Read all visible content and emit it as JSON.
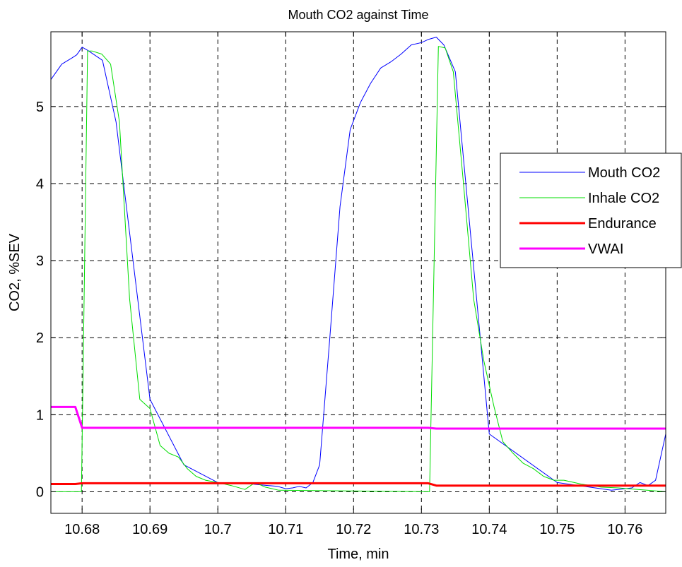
{
  "chart_data": {
    "type": "line",
    "title": "Mouth CO2 against Time",
    "xlabel": "Time, min",
    "ylabel": "CO2, %SEV",
    "xlim": [
      10.6754,
      10.766
    ],
    "ylim": [
      -0.28,
      5.97
    ],
    "x_ticks": [
      10.68,
      10.69,
      10.7,
      10.71,
      10.72,
      10.73,
      10.74,
      10.75,
      10.76
    ],
    "x_tick_labels": [
      "10.68",
      "10.69",
      "10.7",
      "10.71",
      "10.72",
      "10.73",
      "10.74",
      "10.75",
      "10.76"
    ],
    "y_ticks": [
      0,
      1,
      2,
      3,
      4,
      5
    ],
    "y_tick_labels": [
      "0",
      "1",
      "2",
      "3",
      "4",
      "5"
    ],
    "grid": true,
    "legend_position": "right",
    "series": [
      {
        "name": "Mouth CO2",
        "color": "#0000ff",
        "width": 1,
        "x": [
          10.6754,
          10.677,
          10.6785,
          10.6792,
          10.68,
          10.6808,
          10.683,
          10.685,
          10.69,
          10.695,
          10.7,
          10.705,
          10.7075,
          10.7088,
          10.71,
          10.711,
          10.712,
          10.713,
          10.714,
          10.715,
          10.7165,
          10.718,
          10.7195,
          10.721,
          10.7225,
          10.724,
          10.7255,
          10.727,
          10.7285,
          10.73,
          10.731,
          10.7322,
          10.7333,
          10.735,
          10.74,
          10.75,
          10.758,
          10.761,
          10.7622,
          10.7634,
          10.7645,
          10.766
        ],
        "y": [
          5.35,
          5.55,
          5.63,
          5.67,
          5.77,
          5.73,
          5.6,
          4.8,
          1.2,
          0.35,
          0.12,
          0.1,
          0.08,
          0.07,
          0.04,
          0.05,
          0.07,
          0.05,
          0.12,
          0.35,
          2.0,
          3.7,
          4.7,
          5.05,
          5.3,
          5.5,
          5.58,
          5.68,
          5.8,
          5.83,
          5.87,
          5.9,
          5.8,
          5.45,
          0.75,
          0.12,
          0.02,
          0.05,
          0.12,
          0.08,
          0.15,
          0.75
        ]
      },
      {
        "name": "Inhale CO2",
        "color": "#00dd00",
        "width": 1,
        "x": [
          10.6754,
          10.6799,
          10.6808,
          10.6815,
          10.6829,
          10.6842,
          10.6855,
          10.687,
          10.6885,
          10.69,
          10.6915,
          10.6928,
          10.6942,
          10.6955,
          10.6968,
          10.6982,
          10.7,
          10.702,
          10.704,
          10.7055,
          10.707,
          10.709,
          10.7312,
          10.7325,
          10.7335,
          10.7347,
          10.7362,
          10.7377,
          10.7392,
          10.7407,
          10.742,
          10.7435,
          10.745,
          10.7465,
          10.748,
          10.7495,
          10.751,
          10.7535,
          10.7565,
          10.759,
          10.766
        ],
        "y": [
          0.0,
          0.0,
          5.72,
          5.72,
          5.68,
          5.55,
          4.8,
          2.5,
          1.2,
          1.08,
          0.6,
          0.5,
          0.45,
          0.3,
          0.2,
          0.15,
          0.12,
          0.08,
          0.03,
          0.12,
          0.06,
          0.02,
          0.0,
          5.78,
          5.76,
          5.45,
          4.0,
          2.5,
          1.7,
          1.1,
          0.65,
          0.5,
          0.37,
          0.3,
          0.2,
          0.15,
          0.15,
          0.1,
          0.06,
          0.05,
          0.0
        ]
      },
      {
        "name": "Endurance",
        "color": "#ff0000",
        "width": 3,
        "x": [
          10.6754,
          10.679,
          10.68,
          10.731,
          10.7322,
          10.766
        ],
        "y": [
          0.1,
          0.1,
          0.11,
          0.11,
          0.08,
          0.08
        ]
      },
      {
        "name": "VWAI",
        "color": "#ff00ff",
        "width": 3,
        "x": [
          10.6754,
          10.679,
          10.68,
          10.731,
          10.7322,
          10.766
        ],
        "y": [
          1.1,
          1.1,
          0.83,
          0.83,
          0.82,
          0.82
        ]
      }
    ]
  }
}
